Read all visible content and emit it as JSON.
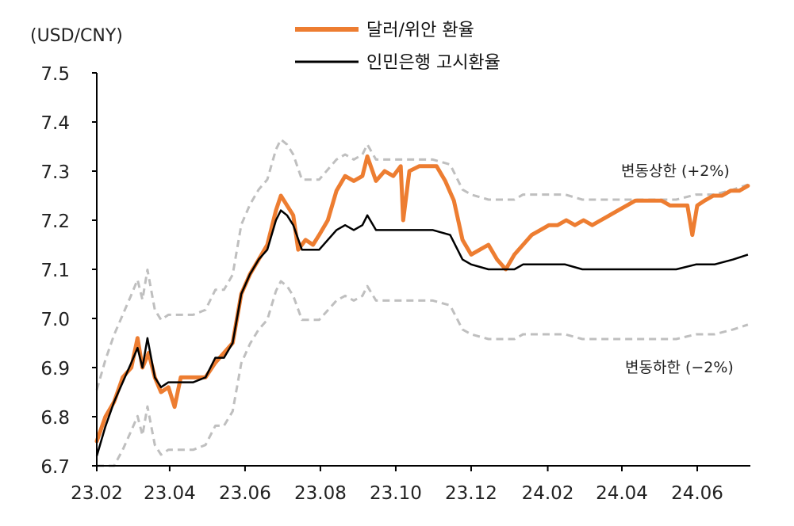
{
  "chart_data": {
    "type": "line",
    "y_unit_label": "(USD/CNY)",
    "ylim": [
      6.7,
      7.5
    ],
    "y_ticks": [
      "6.7",
      "6.8",
      "6.9",
      "7.0",
      "7.1",
      "7.2",
      "7.3",
      "7.4",
      "7.5"
    ],
    "x_tick_labels": [
      "23.02",
      "23.04",
      "23.06",
      "23.08",
      "23.10",
      "23.12",
      "24.02",
      "24.04",
      "24.06"
    ],
    "x_range": [
      "2023-02-01",
      "2024-07-14"
    ],
    "grid": false,
    "legend_position": "top-center",
    "annotations": {
      "upper": "변동상한 (+2%)",
      "lower": "변동하한 (−2%)"
    },
    "series": [
      {
        "name": "달러/위안 환율",
        "color": "#ED7D31",
        "style": "solid-thick",
        "points": [
          [
            "2023-02-01",
            6.75
          ],
          [
            "2023-02-08",
            6.8
          ],
          [
            "2023-02-15",
            6.83
          ],
          [
            "2023-02-22",
            6.88
          ],
          [
            "2023-03-01",
            6.9
          ],
          [
            "2023-03-06",
            6.96
          ],
          [
            "2023-03-10",
            6.9
          ],
          [
            "2023-03-15",
            6.93
          ],
          [
            "2023-03-20",
            6.88
          ],
          [
            "2023-03-25",
            6.85
          ],
          [
            "2023-03-31",
            6.86
          ],
          [
            "2023-04-05",
            6.82
          ],
          [
            "2023-04-10",
            6.88
          ],
          [
            "2023-04-20",
            6.88
          ],
          [
            "2023-04-30",
            6.88
          ],
          [
            "2023-05-08",
            6.91
          ],
          [
            "2023-05-15",
            6.93
          ],
          [
            "2023-05-22",
            6.95
          ],
          [
            "2023-05-29",
            7.05
          ],
          [
            "2023-06-05",
            7.09
          ],
          [
            "2023-06-12",
            7.12
          ],
          [
            "2023-06-19",
            7.15
          ],
          [
            "2023-06-26",
            7.22
          ],
          [
            "2023-06-30",
            7.25
          ],
          [
            "2023-07-05",
            7.23
          ],
          [
            "2023-07-10",
            7.21
          ],
          [
            "2023-07-14",
            7.14
          ],
          [
            "2023-07-20",
            7.16
          ],
          [
            "2023-07-26",
            7.15
          ],
          [
            "2023-07-31",
            7.17
          ],
          [
            "2023-08-07",
            7.2
          ],
          [
            "2023-08-14",
            7.26
          ],
          [
            "2023-08-21",
            7.29
          ],
          [
            "2023-08-28",
            7.28
          ],
          [
            "2023-09-04",
            7.29
          ],
          [
            "2023-09-08",
            7.33
          ],
          [
            "2023-09-15",
            7.28
          ],
          [
            "2023-09-22",
            7.3
          ],
          [
            "2023-09-29",
            7.29
          ],
          [
            "2023-10-05",
            7.31
          ],
          [
            "2023-10-07",
            7.2
          ],
          [
            "2023-10-12",
            7.3
          ],
          [
            "2023-10-20",
            7.31
          ],
          [
            "2023-10-27",
            7.31
          ],
          [
            "2023-11-03",
            7.31
          ],
          [
            "2023-11-10",
            7.28
          ],
          [
            "2023-11-17",
            7.24
          ],
          [
            "2023-11-24",
            7.16
          ],
          [
            "2023-12-01",
            7.13
          ],
          [
            "2023-12-08",
            7.14
          ],
          [
            "2023-12-15",
            7.15
          ],
          [
            "2023-12-22",
            7.12
          ],
          [
            "2023-12-29",
            7.1
          ],
          [
            "2024-01-05",
            7.13
          ],
          [
            "2024-01-12",
            7.15
          ],
          [
            "2024-01-19",
            7.17
          ],
          [
            "2024-01-26",
            7.18
          ],
          [
            "2024-02-02",
            7.19
          ],
          [
            "2024-02-09",
            7.19
          ],
          [
            "2024-02-16",
            7.2
          ],
          [
            "2024-02-23",
            7.19
          ],
          [
            "2024-03-01",
            7.2
          ],
          [
            "2024-03-08",
            7.19
          ],
          [
            "2024-03-15",
            7.2
          ],
          [
            "2024-03-22",
            7.21
          ],
          [
            "2024-03-29",
            7.22
          ],
          [
            "2024-04-05",
            7.23
          ],
          [
            "2024-04-12",
            7.24
          ],
          [
            "2024-04-19",
            7.24
          ],
          [
            "2024-04-26",
            7.24
          ],
          [
            "2024-05-03",
            7.24
          ],
          [
            "2024-05-10",
            7.23
          ],
          [
            "2024-05-17",
            7.23
          ],
          [
            "2024-05-24",
            7.23
          ],
          [
            "2024-05-28",
            7.17
          ],
          [
            "2024-06-01",
            7.23
          ],
          [
            "2024-06-07",
            7.24
          ],
          [
            "2024-06-14",
            7.25
          ],
          [
            "2024-06-21",
            7.25
          ],
          [
            "2024-06-28",
            7.26
          ],
          [
            "2024-07-05",
            7.26
          ],
          [
            "2024-07-12",
            7.27
          ]
        ]
      },
      {
        "name": "인민은행 고시환율",
        "color": "#000000",
        "style": "solid-thin",
        "points": [
          [
            "2023-02-01",
            6.72
          ],
          [
            "2023-02-08",
            6.78
          ],
          [
            "2023-02-15",
            6.83
          ],
          [
            "2023-02-22",
            6.87
          ],
          [
            "2023-03-01",
            6.91
          ],
          [
            "2023-03-06",
            6.94
          ],
          [
            "2023-03-10",
            6.9
          ],
          [
            "2023-03-14",
            6.96
          ],
          [
            "2023-03-20",
            6.88
          ],
          [
            "2023-03-25",
            6.86
          ],
          [
            "2023-03-31",
            6.87
          ],
          [
            "2023-04-10",
            6.87
          ],
          [
            "2023-04-20",
            6.87
          ],
          [
            "2023-04-30",
            6.88
          ],
          [
            "2023-05-08",
            6.92
          ],
          [
            "2023-05-15",
            6.92
          ],
          [
            "2023-05-22",
            6.95
          ],
          [
            "2023-05-29",
            7.05
          ],
          [
            "2023-06-05",
            7.09
          ],
          [
            "2023-06-12",
            7.12
          ],
          [
            "2023-06-19",
            7.14
          ],
          [
            "2023-06-26",
            7.2
          ],
          [
            "2023-06-30",
            7.22
          ],
          [
            "2023-07-05",
            7.21
          ],
          [
            "2023-07-10",
            7.19
          ],
          [
            "2023-07-17",
            7.14
          ],
          [
            "2023-07-24",
            7.14
          ],
          [
            "2023-07-31",
            7.14
          ],
          [
            "2023-08-07",
            7.16
          ],
          [
            "2023-08-14",
            7.18
          ],
          [
            "2023-08-21",
            7.19
          ],
          [
            "2023-08-28",
            7.18
          ],
          [
            "2023-09-04",
            7.19
          ],
          [
            "2023-09-08",
            7.21
          ],
          [
            "2023-09-15",
            7.18
          ],
          [
            "2023-09-30",
            7.18
          ],
          [
            "2023-10-31",
            7.18
          ],
          [
            "2023-11-14",
            7.17
          ],
          [
            "2023-11-24",
            7.12
          ],
          [
            "2023-12-01",
            7.11
          ],
          [
            "2023-12-15",
            7.1
          ],
          [
            "2023-12-29",
            7.1
          ],
          [
            "2024-01-05",
            7.1
          ],
          [
            "2024-01-12",
            7.11
          ],
          [
            "2024-01-19",
            7.11
          ],
          [
            "2024-01-31",
            7.11
          ],
          [
            "2024-02-15",
            7.11
          ],
          [
            "2024-02-29",
            7.1
          ],
          [
            "2024-03-15",
            7.1
          ],
          [
            "2024-03-31",
            7.1
          ],
          [
            "2024-04-15",
            7.1
          ],
          [
            "2024-04-30",
            7.1
          ],
          [
            "2024-05-15",
            7.1
          ],
          [
            "2024-05-31",
            7.11
          ],
          [
            "2024-06-15",
            7.11
          ],
          [
            "2024-06-30",
            7.12
          ],
          [
            "2024-07-12",
            7.13
          ]
        ]
      },
      {
        "name": "변동상한 (+2%)",
        "color": "#BFBFBF",
        "style": "dashed",
        "offset_pct": 2
      },
      {
        "name": "변동하한 (−2%)",
        "color": "#BFBFBF",
        "style": "dashed",
        "offset_pct": -2
      }
    ]
  }
}
